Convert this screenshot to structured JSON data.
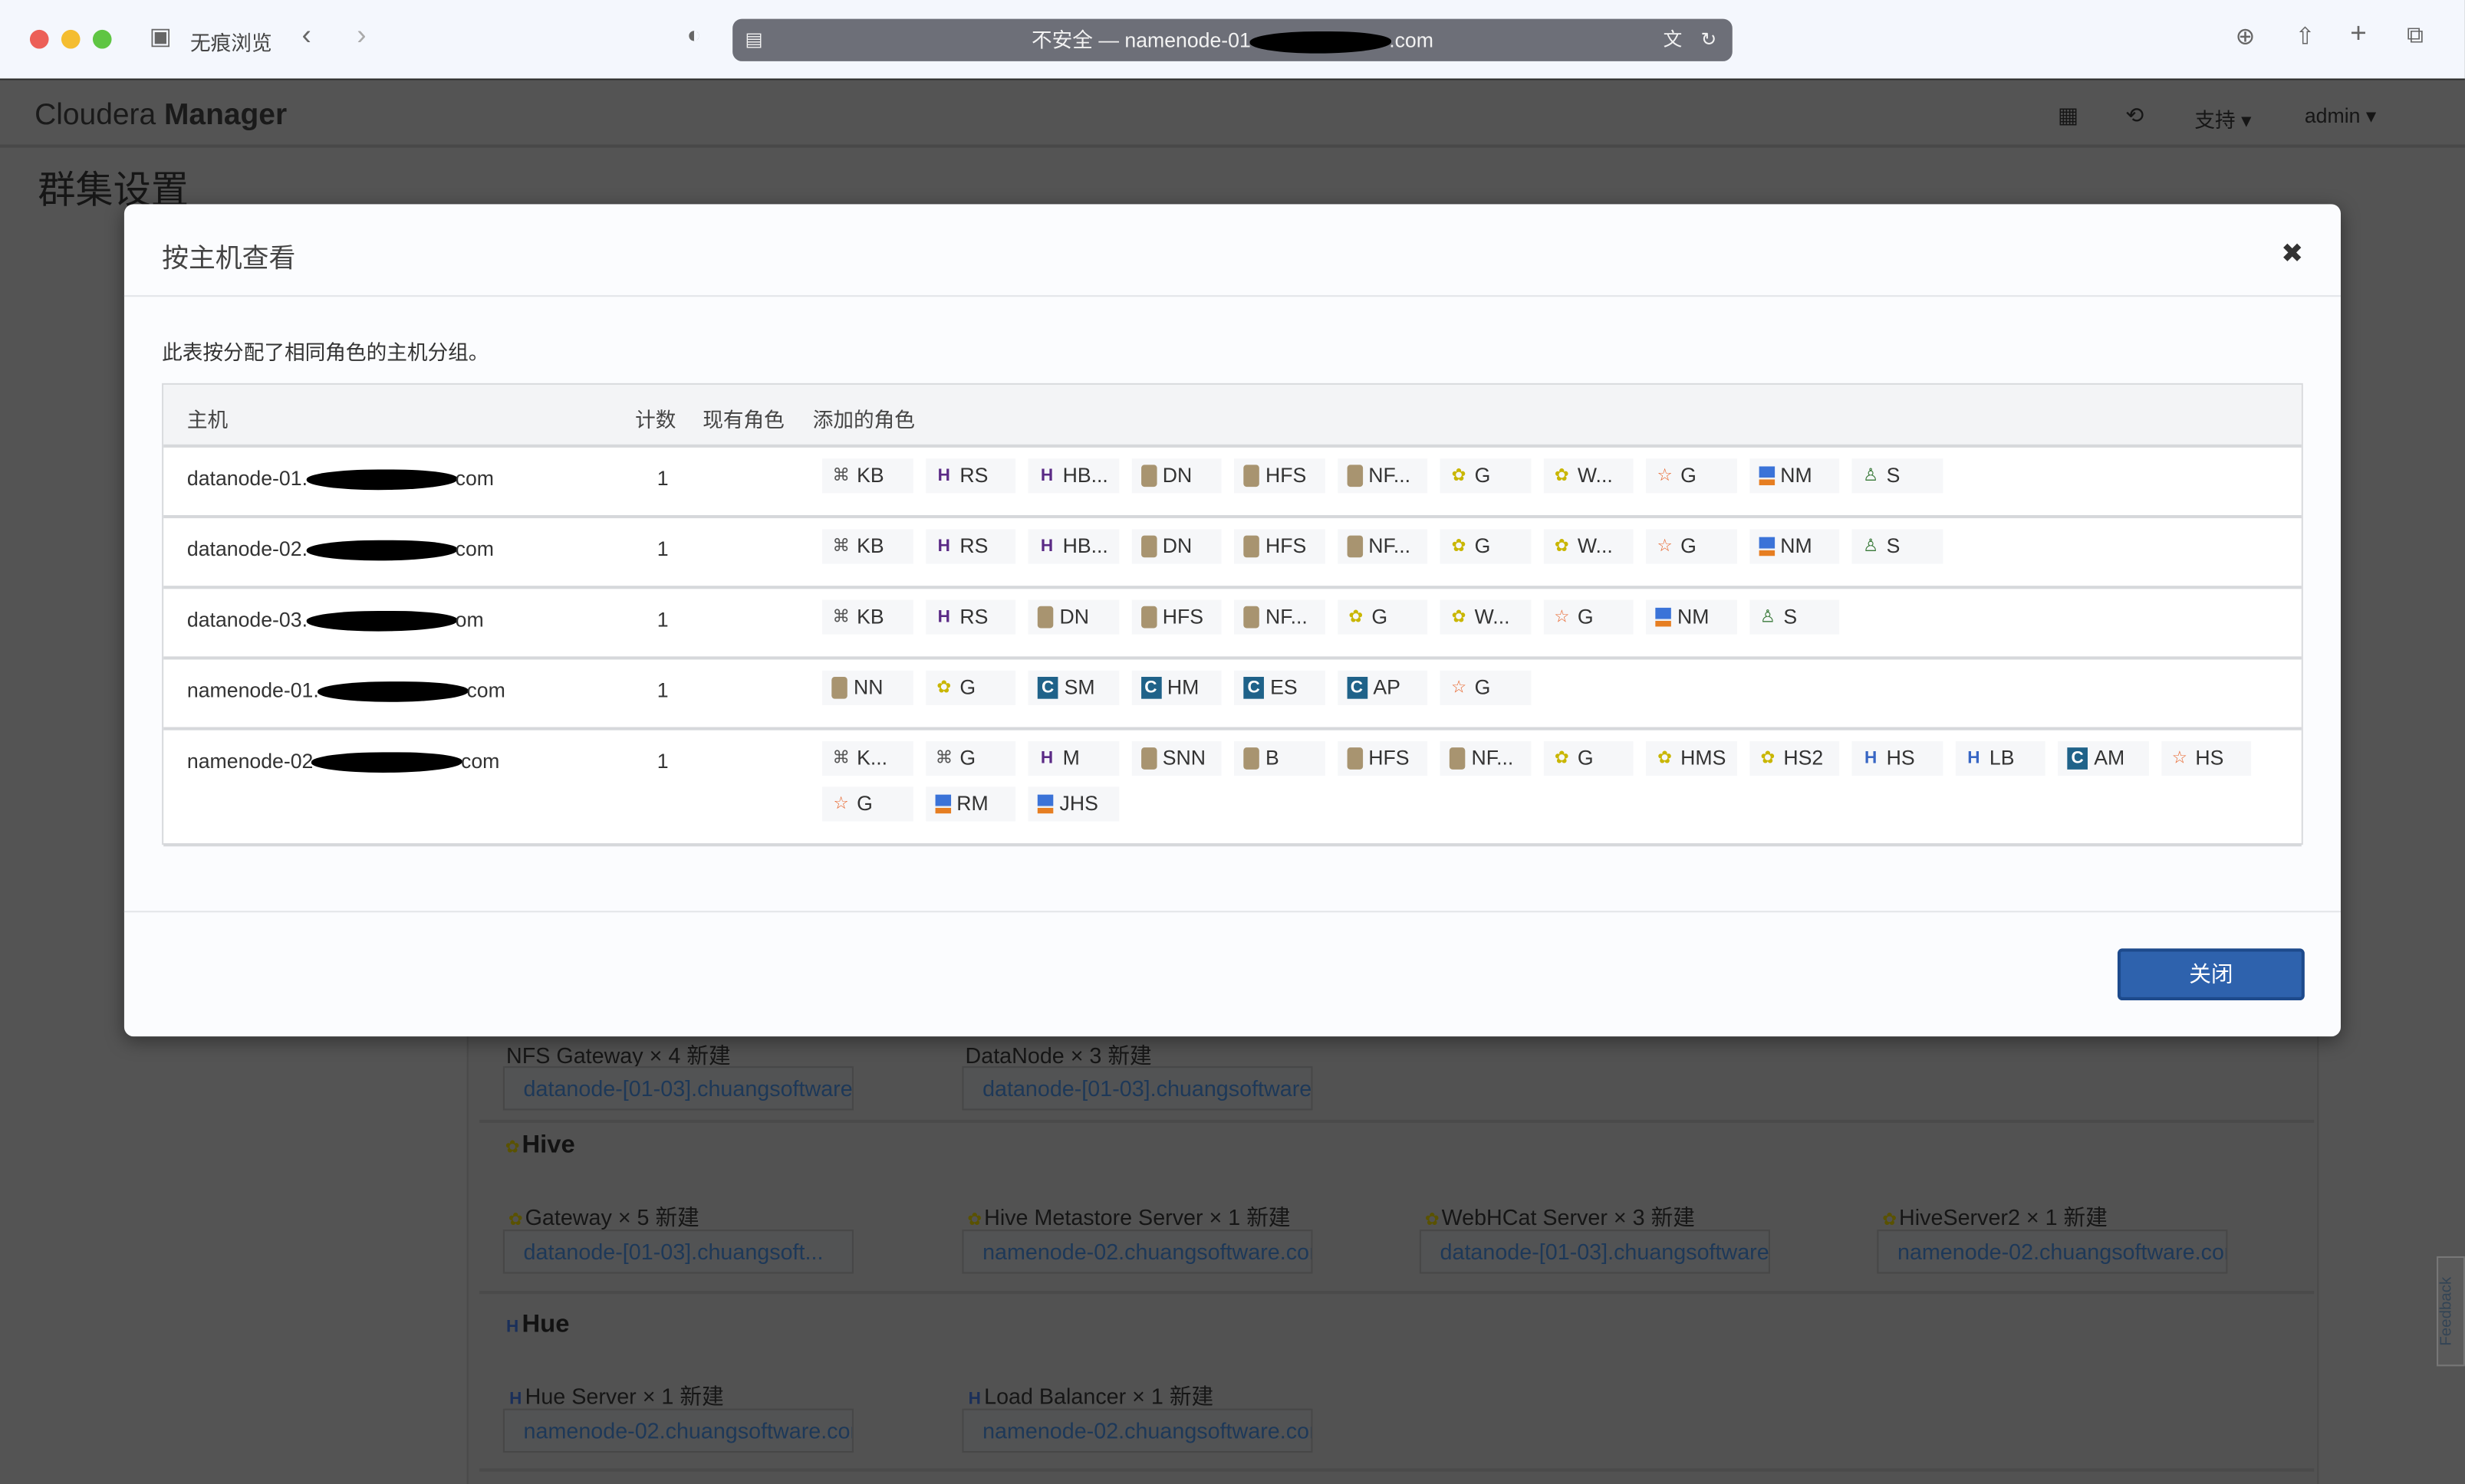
{
  "browser": {
    "private_label": "无痕浏览",
    "address": {
      "prefix": "不安全 — namenode-01",
      "suffix": ".com"
    }
  },
  "app": {
    "brand_light": "Cloudera",
    "brand_bold": "Manager",
    "support_menu": "支持 ▾",
    "user_menu": "admin ▾",
    "page_title": "群集设置"
  },
  "background": {
    "nfs_label": "NFS Gateway × 4 新建",
    "nfs_hosts": "datanode-[01-03].chuangsoftware.",
    "dn_label": "DataNode × 3 新建",
    "dn_hosts": "datanode-[01-03].chuangsoftware.",
    "hive_title": "Hive",
    "hive_roles": [
      {
        "label": "Gateway × 5 新建",
        "hosts": "datanode-[01-03].chuangsoft..."
      },
      {
        "label": "Hive Metastore Server × 1 新建",
        "hosts": "namenode-02.chuangsoftware.cor"
      },
      {
        "label": "WebHCat Server × 3 新建",
        "hosts": "datanode-[01-03].chuangsoftware."
      },
      {
        "label": "HiveServer2 × 1 新建",
        "hosts": "namenode-02.chuangsoftware.cor"
      }
    ],
    "hue_title": "Hue",
    "hue_roles": [
      {
        "label": "Hue Server × 1 新建",
        "hosts": "namenode-02.chuangsoftware.cor"
      },
      {
        "label": "Load Balancer × 1 新建",
        "hosts": "namenode-02.chuangsoftware.cor"
      }
    ],
    "feedback": "Feedback"
  },
  "modal": {
    "title": "按主机查看",
    "description": "此表按分配了相同角色的主机分组。",
    "columns": {
      "host": "主机",
      "count": "计数",
      "existing": "现有角色",
      "added": "添加的角色"
    },
    "close_label": "关闭",
    "rows": [
      {
        "host_prefix": "datanode-01.",
        "host_suffix": "com",
        "count": "1",
        "roles": [
          [
            "kafka",
            "KB"
          ],
          [
            "hbase",
            "RS"
          ],
          [
            "hbase",
            "HB..."
          ],
          [
            "hdfs",
            "DN"
          ],
          [
            "hdfs",
            "HFS"
          ],
          [
            "hdfs",
            "NF..."
          ],
          [
            "hive",
            "G"
          ],
          [
            "hive",
            "W..."
          ],
          [
            "spark",
            "G"
          ],
          [
            "yarn",
            "NM"
          ],
          [
            "sqoop",
            "S"
          ]
        ]
      },
      {
        "host_prefix": "datanode-02.",
        "host_suffix": "com",
        "count": "1",
        "roles": [
          [
            "kafka",
            "KB"
          ],
          [
            "hbase",
            "RS"
          ],
          [
            "hbase",
            "HB..."
          ],
          [
            "hdfs",
            "DN"
          ],
          [
            "hdfs",
            "HFS"
          ],
          [
            "hdfs",
            "NF..."
          ],
          [
            "hive",
            "G"
          ],
          [
            "hive",
            "W..."
          ],
          [
            "spark",
            "G"
          ],
          [
            "yarn",
            "NM"
          ],
          [
            "sqoop",
            "S"
          ]
        ]
      },
      {
        "host_prefix": "datanode-03.",
        "host_suffix": "om",
        "count": "1",
        "roles": [
          [
            "kafka",
            "KB"
          ],
          [
            "hbase",
            "RS"
          ],
          [
            "hdfs",
            "DN"
          ],
          [
            "hdfs",
            "HFS"
          ],
          [
            "hdfs",
            "NF..."
          ],
          [
            "hive",
            "G"
          ],
          [
            "hive",
            "W..."
          ],
          [
            "spark",
            "G"
          ],
          [
            "yarn",
            "NM"
          ],
          [
            "sqoop",
            "S"
          ]
        ]
      },
      {
        "host_prefix": "namenode-01.",
        "host_suffix": "com",
        "count": "1",
        "roles": [
          [
            "hdfs",
            "NN"
          ],
          [
            "hive",
            "G"
          ],
          [
            "cloudera",
            "SM"
          ],
          [
            "cloudera",
            "HM"
          ],
          [
            "cloudera",
            "ES"
          ],
          [
            "cloudera",
            "AP"
          ],
          [
            "spark",
            "G"
          ]
        ]
      },
      {
        "host_prefix": "namenode-02",
        "host_suffix": "com",
        "count": "1",
        "roles": [
          [
            "kafka",
            "K..."
          ],
          [
            "kafka",
            "G"
          ],
          [
            "hbase",
            "M"
          ],
          [
            "hdfs",
            "SNN"
          ],
          [
            "hdfs",
            "B"
          ],
          [
            "hdfs",
            "HFS"
          ],
          [
            "hdfs",
            "NF..."
          ],
          [
            "hive",
            "G"
          ],
          [
            "hive",
            "HMS"
          ],
          [
            "hive",
            "HS2"
          ],
          [
            "hue",
            "HS"
          ],
          [
            "hue",
            "LB"
          ],
          [
            "cloudera",
            "AM"
          ],
          [
            "spark",
            "HS"
          ],
          [
            "spark",
            "G"
          ],
          [
            "yarn",
            "RM"
          ],
          [
            "yarn",
            "JHS"
          ]
        ]
      }
    ]
  },
  "icons": {
    "kafka": "⌘",
    "hbase": "H",
    "hdfs": "",
    "hive": "✿",
    "spark": "☆",
    "yarn": "",
    "sqoop": "♙",
    "cloudera": "C",
    "hue": "H"
  }
}
